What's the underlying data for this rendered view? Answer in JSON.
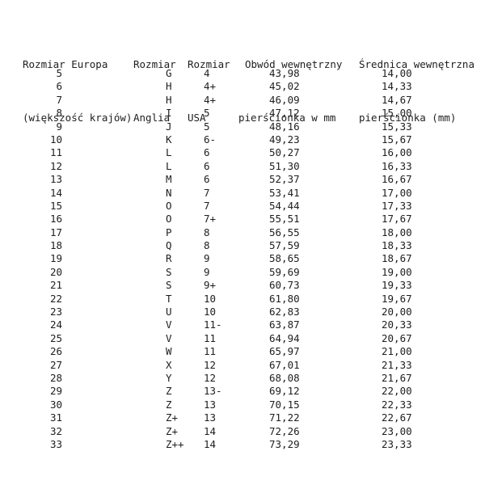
{
  "colors": {
    "background": "#ffffff",
    "text": "#1e1e1e"
  },
  "table": {
    "headers": [
      {
        "line1": "Rozmiar Europa",
        "line2": "(większość krajów)"
      },
      {
        "line1": "Rozmiar",
        "line2": "Anglia"
      },
      {
        "line1": "Rozmiar",
        "line2": "USA"
      },
      {
        "line1": "Obwód wewnętrzny",
        "line2": "pierścionka w mm"
      },
      {
        "line1": "Średnica wewnętrzna",
        "line2": "pierścionka (mm)"
      }
    ],
    "rows": [
      [
        "5",
        "G",
        "4",
        "43,98",
        "14,00"
      ],
      [
        "6",
        "H",
        "4+",
        "45,02",
        "14,33"
      ],
      [
        "7",
        "H",
        "4+",
        "46,09",
        "14,67"
      ],
      [
        "8",
        "I",
        "5",
        "47,12",
        "15,00"
      ],
      [
        "9",
        "J",
        "5",
        "48,16",
        "15,33"
      ],
      [
        "10",
        "K",
        "6-",
        "49,23",
        "15,67"
      ],
      [
        "11",
        "L",
        "6",
        "50,27",
        "16,00"
      ],
      [
        "12",
        "L",
        "6",
        "51,30",
        "16,33"
      ],
      [
        "13",
        "M",
        "6",
        "52,37",
        "16,67"
      ],
      [
        "14",
        "N",
        "7",
        "53,41",
        "17,00"
      ],
      [
        "15",
        "O",
        "7",
        "54,44",
        "17,33"
      ],
      [
        "16",
        "O",
        "7+",
        "55,51",
        "17,67"
      ],
      [
        "17",
        "P",
        "8",
        "56,55",
        "18,00"
      ],
      [
        "18",
        "Q",
        "8",
        "57,59",
        "18,33"
      ],
      [
        "19",
        "R",
        "9",
        "58,65",
        "18,67"
      ],
      [
        "20",
        "S",
        "9",
        "59,69",
        "19,00"
      ],
      [
        "21",
        "S",
        "9+",
        "60,73",
        "19,33"
      ],
      [
        "22",
        "T",
        "10",
        "61,80",
        "19,67"
      ],
      [
        "23",
        "U",
        "10",
        "62,83",
        "20,00"
      ],
      [
        "24",
        "V",
        "11-",
        "63,87",
        "20,33"
      ],
      [
        "25",
        "V",
        "11",
        "64,94",
        "20,67"
      ],
      [
        "26",
        "W",
        "11",
        "65,97",
        "21,00"
      ],
      [
        "27",
        "X",
        "12",
        "67,01",
        "21,33"
      ],
      [
        "28",
        "Y",
        "12",
        "68,08",
        "21,67"
      ],
      [
        "29",
        "Z",
        "13-",
        "69,12",
        "22,00"
      ],
      [
        "30",
        "Z",
        "13",
        "70,15",
        "22,33"
      ],
      [
        "31",
        "Z+",
        "13",
        "71,22",
        "22,67"
      ],
      [
        "32",
        "Z+",
        "14",
        "72,26",
        "23,00"
      ],
      [
        "33",
        "Z++",
        "14",
        "73,29",
        "23,33"
      ]
    ]
  }
}
